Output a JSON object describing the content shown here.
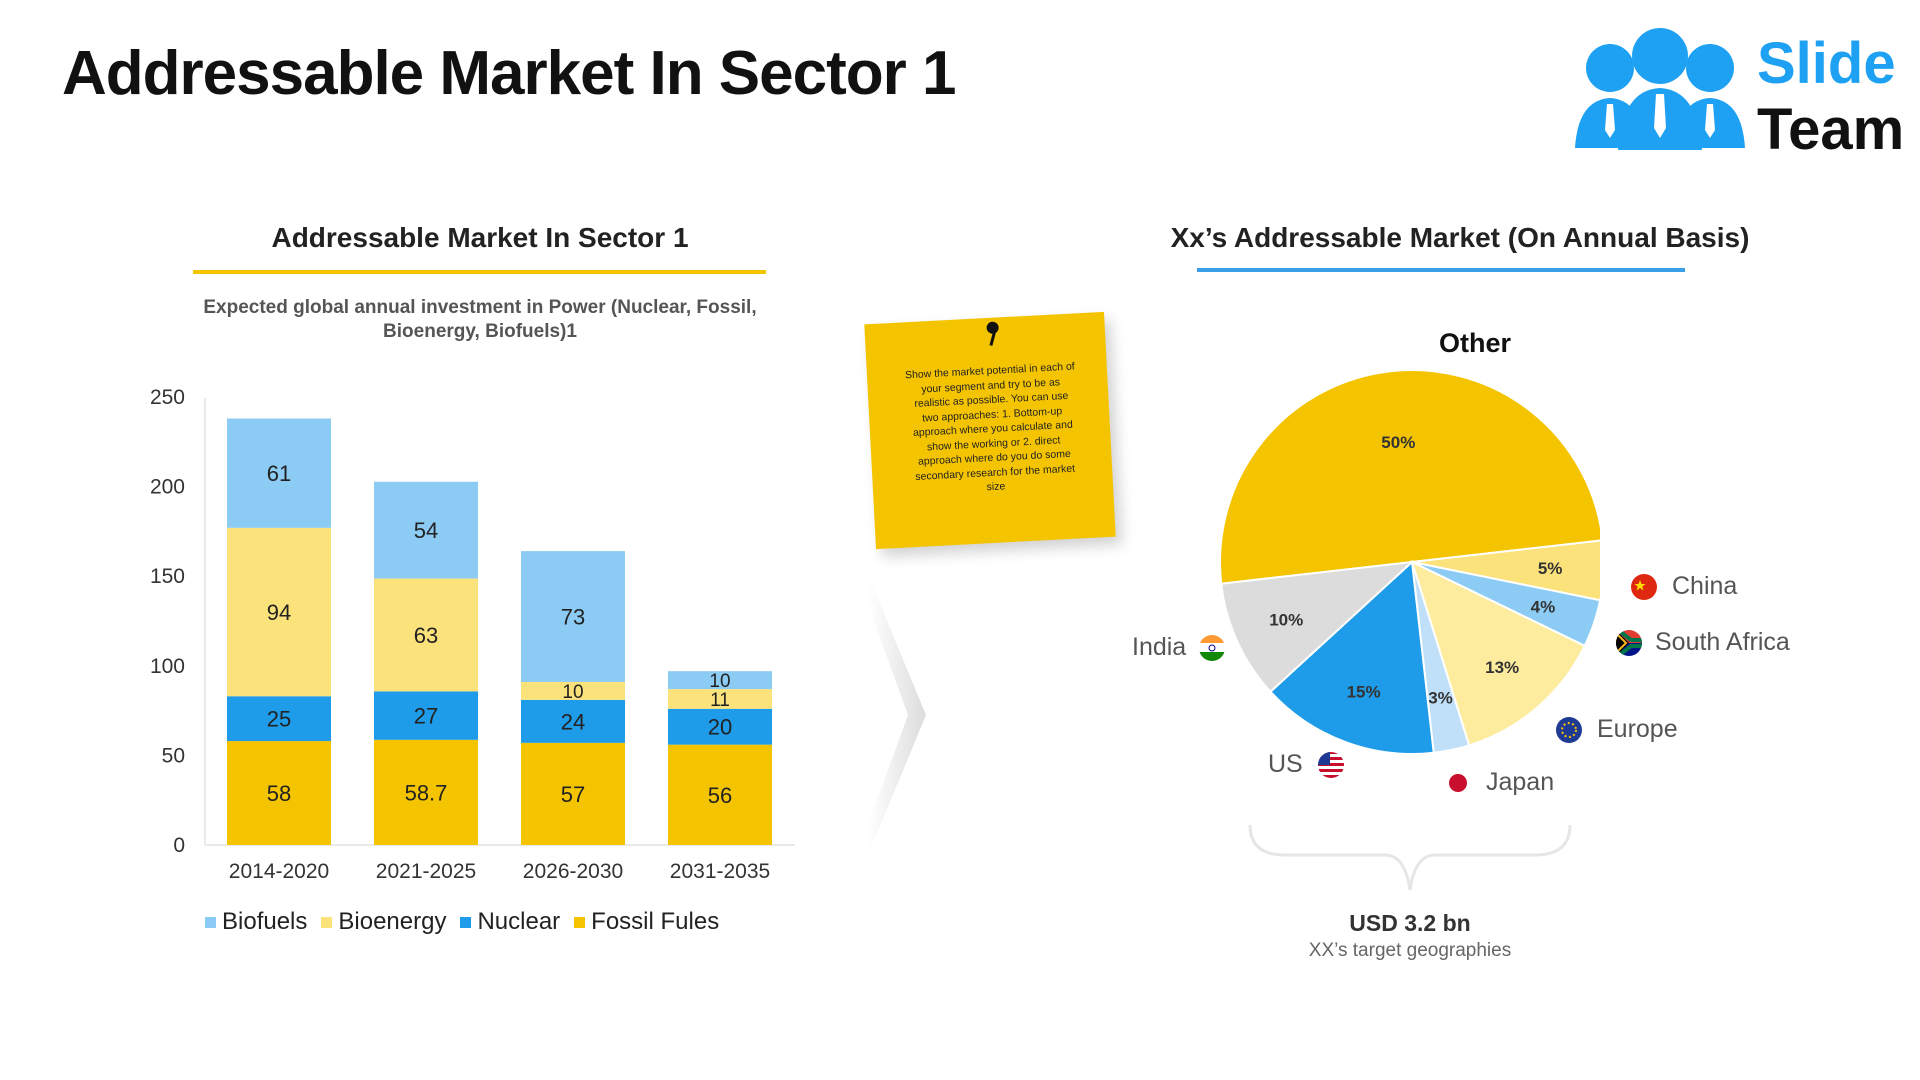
{
  "page": {
    "title": "Addressable Market In Sector 1"
  },
  "logo": {
    "word1": "Slide",
    "word2": "Team",
    "colors": {
      "primary": "#1ea1f2",
      "dark": "#111111"
    }
  },
  "bar_panel": {
    "title": "Addressable Market In Sector 1",
    "subtitle": "Expected global annual investment in Power (Nuclear, Fossil, Bioenergy, Biofuels)1"
  },
  "sticky_note": {
    "text": "Show the market potential in each of your segment and try to be as realistic as possible. You can use two approaches: 1. Bottom-up approach where you calculate and show the working or 2. direct approach where do you do some secondary research for the market size"
  },
  "pie_panel": {
    "title": "Xx’s Addressable Market (On Annual Basis)",
    "total_value": "USD 3.2 bn",
    "total_caption": "XX’s target geographies",
    "countries": {
      "india": "India",
      "us": "US",
      "japan": "Japan",
      "europe": "Europe",
      "south_africa": "South Africa",
      "china": "China"
    }
  },
  "chart_data": [
    {
      "type": "bar",
      "stacked": true,
      "categories": [
        "2014-2020",
        "2021-2025",
        "2026-2030",
        "2031-2035"
      ],
      "series": [
        {
          "name": "Fossil Fules",
          "values": [
            58,
            58.7,
            57,
            56
          ],
          "color": "#f5c400"
        },
        {
          "name": "Nuclear",
          "values": [
            25,
            27,
            24,
            20
          ],
          "color": "#1e9be9"
        },
        {
          "name": "Bioenergy",
          "values": [
            94,
            63,
            10,
            11
          ],
          "color": "#fbe27a"
        },
        {
          "name": "Biofuels",
          "values": [
            61,
            54,
            73,
            10
          ],
          "color": "#8ccbf4"
        }
      ],
      "ylim": [
        0,
        250
      ],
      "yticks": [
        0,
        50,
        100,
        150,
        200,
        250
      ],
      "legend_order": [
        "Biofuels",
        "Bioenergy",
        "Nuclear",
        "Fossil Fules"
      ],
      "legend_position": "bottom",
      "grid": false
    },
    {
      "type": "pie",
      "slices": [
        {
          "label": "Other",
          "value": 50,
          "text": "50%",
          "color": "#f5c400"
        },
        {
          "label": "China",
          "value": 5,
          "text": "5%",
          "color": "#fbe27a"
        },
        {
          "label": "South Africa",
          "value": 4,
          "text": "4%",
          "color": "#8ccbf4"
        },
        {
          "label": "Europe",
          "value": 13,
          "text": "13%",
          "color": "#fdec9e"
        },
        {
          "label": "Japan",
          "value": 3,
          "text": "3%",
          "color": "#bfe0f8"
        },
        {
          "label": "US",
          "value": 15,
          "text": "15%",
          "color": "#1e9be9"
        },
        {
          "label": "India",
          "value": 10,
          "text": "10%",
          "color": "#dcdcdc"
        }
      ]
    }
  ]
}
